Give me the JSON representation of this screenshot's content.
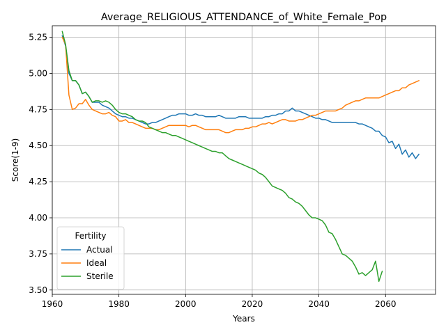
{
  "chart_data": {
    "type": "line",
    "title": "Average_RELIGIOUS_ATTENDANCE_of_White_Female_Pop",
    "xlabel": "Years",
    "ylabel": "Score(1-9)",
    "xlim": [
      1960,
      2075
    ],
    "ylim": [
      3.47,
      5.33
    ],
    "xticks": [
      1960,
      1980,
      2000,
      2020,
      2040,
      2060
    ],
    "yticks": [
      3.5,
      3.75,
      4.0,
      4.25,
      4.5,
      4.75,
      5.0,
      5.25
    ],
    "ytick_labels": [
      "3.50",
      "3.75",
      "4.00",
      "4.25",
      "4.50",
      "4.75",
      "5.00",
      "5.25"
    ],
    "grid": true,
    "legend": {
      "title": "Fertility",
      "placement": "lower-left"
    },
    "series": [
      {
        "name": "Actual",
        "color": "#1f77b4",
        "x": [
          1963,
          1964,
          1965,
          1966,
          1967,
          1968,
          1969,
          1970,
          1971,
          1972,
          1973,
          1974,
          1975,
          1976,
          1977,
          1978,
          1979,
          1980,
          1981,
          1982,
          1983,
          1984,
          1985,
          1986,
          1987,
          1988,
          1989,
          1990,
          1991,
          1992,
          1993,
          1994,
          1995,
          1996,
          1997,
          1998,
          1999,
          2000,
          2001,
          2002,
          2003,
          2004,
          2005,
          2006,
          2007,
          2008,
          2009,
          2010,
          2011,
          2012,
          2013,
          2014,
          2015,
          2016,
          2017,
          2018,
          2019,
          2020,
          2021,
          2022,
          2023,
          2024,
          2025,
          2026,
          2027,
          2028,
          2029,
          2030,
          2031,
          2032,
          2033,
          2034,
          2035,
          2036,
          2037,
          2038,
          2039,
          2040,
          2041,
          2042,
          2043,
          2044,
          2045,
          2046,
          2047,
          2048,
          2049,
          2050,
          2051,
          2052,
          2053,
          2054,
          2055,
          2056,
          2057,
          2058,
          2059,
          2060,
          2061,
          2062,
          2063,
          2064,
          2065,
          2066,
          2067,
          2068,
          2069,
          2070
        ],
        "values": [
          5.26,
          5.19,
          5.0,
          4.95,
          4.95,
          4.92,
          4.86,
          4.87,
          4.84,
          4.8,
          4.8,
          4.8,
          4.78,
          4.77,
          4.76,
          4.74,
          4.72,
          4.71,
          4.7,
          4.7,
          4.69,
          4.69,
          4.68,
          4.67,
          4.66,
          4.65,
          4.65,
          4.66,
          4.66,
          4.67,
          4.68,
          4.69,
          4.7,
          4.71,
          4.71,
          4.72,
          4.72,
          4.72,
          4.71,
          4.71,
          4.72,
          4.71,
          4.71,
          4.7,
          4.7,
          4.7,
          4.7,
          4.71,
          4.7,
          4.69,
          4.69,
          4.69,
          4.69,
          4.7,
          4.7,
          4.7,
          4.69,
          4.69,
          4.69,
          4.69,
          4.69,
          4.7,
          4.7,
          4.71,
          4.71,
          4.72,
          4.72,
          4.74,
          4.74,
          4.76,
          4.74,
          4.74,
          4.73,
          4.72,
          4.71,
          4.7,
          4.69,
          4.69,
          4.68,
          4.68,
          4.67,
          4.66,
          4.66,
          4.66,
          4.66,
          4.66,
          4.66,
          4.66,
          4.66,
          4.65,
          4.65,
          4.64,
          4.63,
          4.62,
          4.6,
          4.6,
          4.57,
          4.56,
          4.52,
          4.53,
          4.48,
          4.51,
          4.44,
          4.47,
          4.42,
          4.45,
          4.41,
          4.44
        ]
      },
      {
        "name": "Ideal",
        "color": "#ff7f0e",
        "x": [
          1963,
          1964,
          1965,
          1966,
          1967,
          1968,
          1969,
          1970,
          1971,
          1972,
          1973,
          1974,
          1975,
          1976,
          1977,
          1978,
          1979,
          1980,
          1981,
          1982,
          1983,
          1984,
          1985,
          1986,
          1987,
          1988,
          1989,
          1990,
          1991,
          1992,
          1993,
          1994,
          1995,
          1996,
          1997,
          1998,
          1999,
          2000,
          2001,
          2002,
          2003,
          2004,
          2005,
          2006,
          2007,
          2008,
          2009,
          2010,
          2011,
          2012,
          2013,
          2014,
          2015,
          2016,
          2017,
          2018,
          2019,
          2020,
          2021,
          2022,
          2023,
          2024,
          2025,
          2026,
          2027,
          2028,
          2029,
          2030,
          2031,
          2032,
          2033,
          2034,
          2035,
          2036,
          2037,
          2038,
          2039,
          2040,
          2041,
          2042,
          2043,
          2044,
          2045,
          2046,
          2047,
          2048,
          2049,
          2050,
          2051,
          2052,
          2053,
          2054,
          2055,
          2056,
          2057,
          2058,
          2059,
          2060,
          2061,
          2062,
          2063,
          2064,
          2065,
          2066,
          2067,
          2068,
          2069,
          2070
        ],
        "values": [
          5.25,
          5.2,
          4.85,
          4.75,
          4.76,
          4.79,
          4.79,
          4.82,
          4.78,
          4.75,
          4.74,
          4.73,
          4.72,
          4.72,
          4.73,
          4.71,
          4.7,
          4.67,
          4.67,
          4.68,
          4.66,
          4.66,
          4.65,
          4.64,
          4.63,
          4.62,
          4.62,
          4.62,
          4.61,
          4.61,
          4.62,
          4.63,
          4.64,
          4.64,
          4.64,
          4.64,
          4.64,
          4.64,
          4.63,
          4.64,
          4.64,
          4.63,
          4.62,
          4.61,
          4.61,
          4.61,
          4.61,
          4.61,
          4.6,
          4.59,
          4.59,
          4.6,
          4.61,
          4.61,
          4.61,
          4.62,
          4.62,
          4.63,
          4.63,
          4.64,
          4.65,
          4.65,
          4.66,
          4.65,
          4.66,
          4.67,
          4.68,
          4.68,
          4.67,
          4.67,
          4.67,
          4.68,
          4.68,
          4.69,
          4.7,
          4.71,
          4.71,
          4.72,
          4.73,
          4.74,
          4.74,
          4.74,
          4.74,
          4.75,
          4.76,
          4.78,
          4.79,
          4.8,
          4.81,
          4.81,
          4.82,
          4.83,
          4.83,
          4.83,
          4.83,
          4.83,
          4.84,
          4.85,
          4.86,
          4.87,
          4.88,
          4.88,
          4.9,
          4.9,
          4.92,
          4.93,
          4.94,
          4.95
        ]
      },
      {
        "name": "Sterile",
        "color": "#2ca02c",
        "x": [
          1963,
          1964,
          1965,
          1966,
          1967,
          1968,
          1969,
          1970,
          1971,
          1972,
          1973,
          1974,
          1975,
          1976,
          1977,
          1978,
          1979,
          1980,
          1981,
          1982,
          1983,
          1984,
          1985,
          1986,
          1987,
          1988,
          1989,
          1990,
          1991,
          1992,
          1993,
          1994,
          1995,
          1996,
          1997,
          1998,
          1999,
          2000,
          2001,
          2002,
          2003,
          2004,
          2005,
          2006,
          2007,
          2008,
          2009,
          2010,
          2011,
          2012,
          2013,
          2014,
          2015,
          2016,
          2017,
          2018,
          2019,
          2020,
          2021,
          2022,
          2023,
          2024,
          2025,
          2026,
          2027,
          2028,
          2029,
          2030,
          2031,
          2032,
          2033,
          2034,
          2035,
          2036,
          2037,
          2038,
          2039,
          2040,
          2041,
          2042,
          2043,
          2044,
          2045,
          2046,
          2047,
          2048,
          2049,
          2050,
          2051,
          2052,
          2053,
          2054,
          2055,
          2056,
          2057,
          2058,
          2059
        ],
        "values": [
          5.29,
          5.2,
          5.02,
          4.95,
          4.95,
          4.92,
          4.86,
          4.87,
          4.84,
          4.8,
          4.81,
          4.81,
          4.8,
          4.81,
          4.8,
          4.78,
          4.75,
          4.73,
          4.72,
          4.72,
          4.71,
          4.7,
          4.68,
          4.67,
          4.67,
          4.66,
          4.63,
          4.62,
          4.61,
          4.6,
          4.59,
          4.59,
          4.58,
          4.57,
          4.57,
          4.56,
          4.55,
          4.54,
          4.53,
          4.52,
          4.51,
          4.5,
          4.49,
          4.48,
          4.47,
          4.46,
          4.46,
          4.45,
          4.45,
          4.43,
          4.41,
          4.4,
          4.39,
          4.38,
          4.37,
          4.36,
          4.35,
          4.34,
          4.33,
          4.31,
          4.3,
          4.28,
          4.25,
          4.22,
          4.21,
          4.2,
          4.19,
          4.17,
          4.14,
          4.13,
          4.11,
          4.1,
          4.08,
          4.05,
          4.02,
          4.0,
          4.0,
          3.99,
          3.98,
          3.95,
          3.9,
          3.89,
          3.85,
          3.8,
          3.75,
          3.74,
          3.72,
          3.7,
          3.66,
          3.61,
          3.62,
          3.6,
          3.62,
          3.64,
          3.7,
          3.56,
          3.63
        ]
      }
    ]
  }
}
